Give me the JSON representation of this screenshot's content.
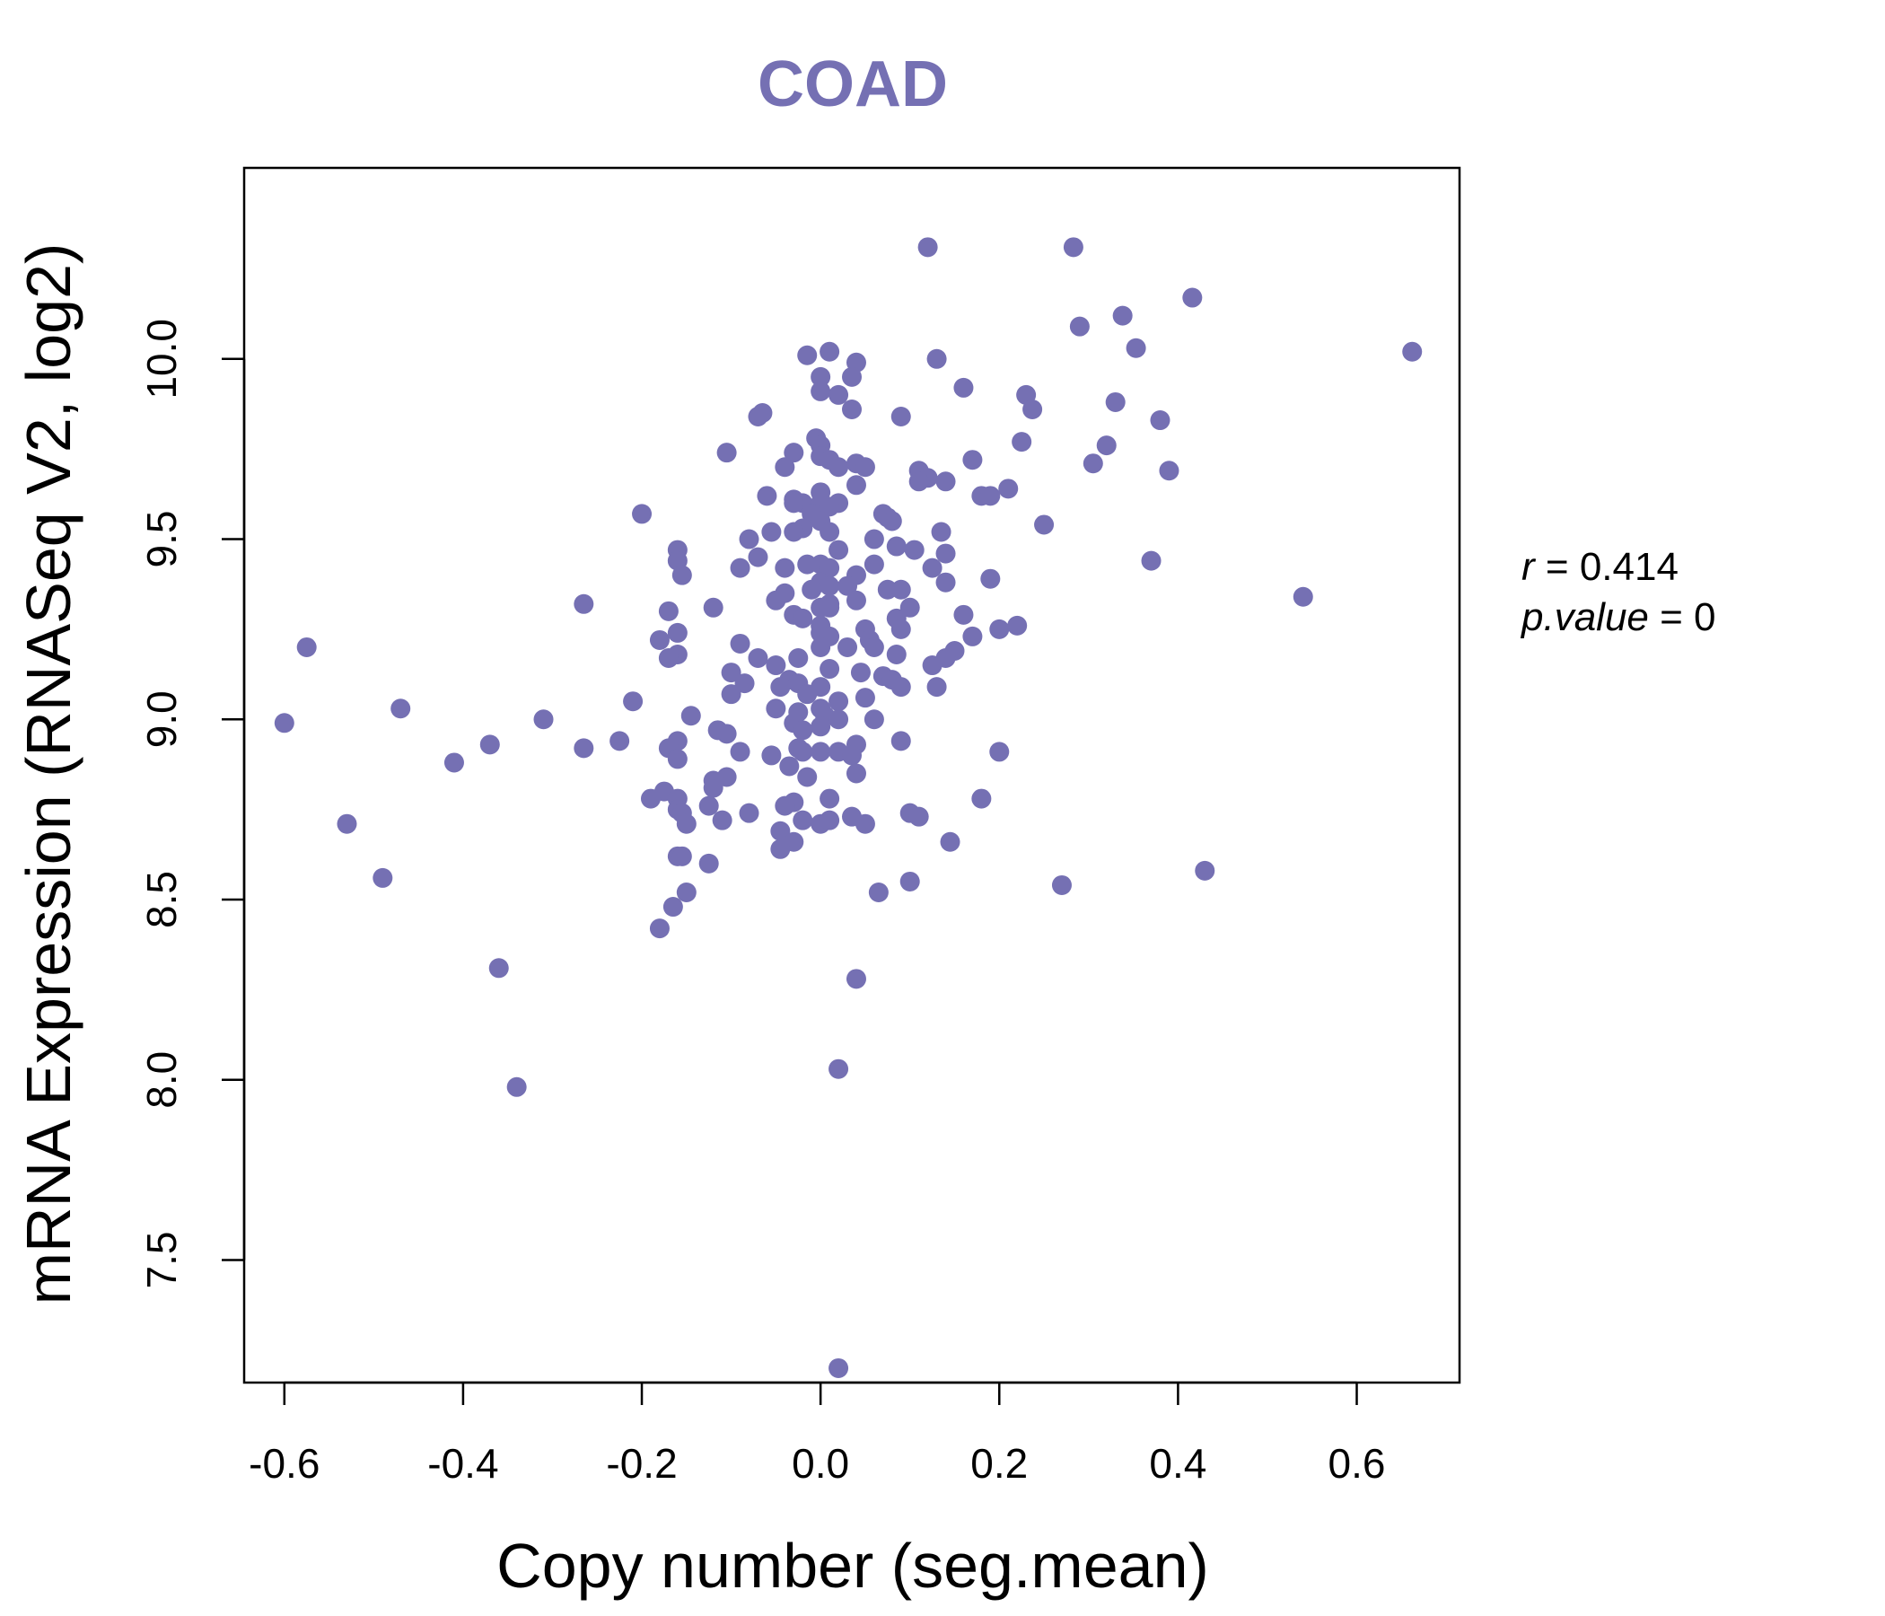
{
  "chart_data": {
    "type": "scatter",
    "title": "COAD",
    "xlabel": "Copy number (seg.mean)",
    "ylabel": "mRNA Expression (RNASeq V2, log2)",
    "xlim": [
      -0.645,
      0.715
    ],
    "ylim": [
      7.16,
      10.53
    ],
    "xticks": [
      -0.6,
      -0.4,
      -0.2,
      0.0,
      0.2,
      0.4,
      0.6
    ],
    "xtick_labels": [
      "-0.6",
      "-0.4",
      "-0.2",
      "0.0",
      "0.2",
      "0.4",
      "0.6"
    ],
    "yticks": [
      7.5,
      8.0,
      8.5,
      9.0,
      9.5,
      10.0
    ],
    "ytick_labels": [
      "7.5",
      "8.0",
      "8.5",
      "9.0",
      "9.5",
      "10.0"
    ],
    "grid": false,
    "point_color": "#7570b3",
    "stats": {
      "r_label": "r",
      "r_value": "0.414",
      "p_label": "p.value",
      "p_value": "0"
    },
    "points": [
      [
        0.12,
        10.31
      ],
      [
        0.283,
        10.31
      ],
      [
        0.416,
        10.17
      ],
      [
        0.29,
        10.09
      ],
      [
        0.338,
        10.12
      ],
      [
        0.353,
        10.03
      ],
      [
        0.662,
        10.02
      ],
      [
        -0.015,
        10.01
      ],
      [
        0.01,
        10.02
      ],
      [
        0.04,
        9.99
      ],
      [
        0.13,
        10.0
      ],
      [
        0.0,
        9.95
      ],
      [
        0.035,
        9.95
      ],
      [
        0.0,
        9.91
      ],
      [
        0.02,
        9.9
      ],
      [
        0.16,
        9.92
      ],
      [
        0.23,
        9.9
      ],
      [
        0.237,
        9.86
      ],
      [
        0.33,
        9.88
      ],
      [
        0.38,
        9.83
      ],
      [
        0.035,
        9.86
      ],
      [
        0.09,
        9.84
      ],
      [
        -0.07,
        9.84
      ],
      [
        -0.065,
        9.85
      ],
      [
        -0.005,
        9.78
      ],
      [
        0.0,
        9.76
      ],
      [
        0.32,
        9.76
      ],
      [
        0.225,
        9.77
      ],
      [
        -0.105,
        9.74
      ],
      [
        -0.03,
        9.74
      ],
      [
        0.0,
        9.73
      ],
      [
        0.17,
        9.72
      ],
      [
        0.01,
        9.72
      ],
      [
        0.02,
        9.7
      ],
      [
        0.04,
        9.71
      ],
      [
        -0.04,
        9.7
      ],
      [
        0.05,
        9.7
      ],
      [
        0.11,
        9.69
      ],
      [
        0.305,
        9.71
      ],
      [
        0.39,
        9.69
      ],
      [
        0.12,
        9.67
      ],
      [
        0.14,
        9.66
      ],
      [
        0.11,
        9.66
      ],
      [
        0.04,
        9.65
      ],
      [
        0.21,
        9.64
      ],
      [
        0.18,
        9.62
      ],
      [
        0.19,
        9.62
      ],
      [
        -0.06,
        9.62
      ],
      [
        0.0,
        9.63
      ],
      [
        -0.03,
        9.61
      ],
      [
        -0.02,
        9.6
      ],
      [
        0.0,
        9.6
      ],
      [
        0.02,
        9.6
      ],
      [
        0.01,
        9.59
      ],
      [
        -0.03,
        9.6
      ],
      [
        0.07,
        9.57
      ],
      [
        -0.2,
        9.57
      ],
      [
        -0.01,
        9.57
      ],
      [
        0.0,
        9.55
      ],
      [
        0.075,
        9.56
      ],
      [
        0.08,
        9.55
      ],
      [
        0.25,
        9.54
      ],
      [
        -0.02,
        9.53
      ],
      [
        0.01,
        9.52
      ],
      [
        -0.055,
        9.52
      ],
      [
        -0.03,
        9.52
      ],
      [
        -0.08,
        9.5
      ],
      [
        0.06,
        9.5
      ],
      [
        0.135,
        9.52
      ],
      [
        -0.16,
        9.47
      ],
      [
        0.085,
        9.48
      ],
      [
        0.02,
        9.47
      ],
      [
        0.105,
        9.47
      ],
      [
        0.14,
        9.46
      ],
      [
        -0.16,
        9.44
      ],
      [
        -0.07,
        9.45
      ],
      [
        0.37,
        9.44
      ],
      [
        0.0,
        9.43
      ],
      [
        -0.015,
        9.43
      ],
      [
        0.01,
        9.42
      ],
      [
        -0.04,
        9.42
      ],
      [
        -0.09,
        9.42
      ],
      [
        0.06,
        9.43
      ],
      [
        0.125,
        9.42
      ],
      [
        -0.155,
        9.4
      ],
      [
        0.04,
        9.4
      ],
      [
        0.19,
        9.39
      ],
      [
        0.14,
        9.38
      ],
      [
        0.0,
        9.38
      ],
      [
        0.01,
        9.37
      ],
      [
        0.03,
        9.37
      ],
      [
        -0.01,
        9.36
      ],
      [
        0.075,
        9.36
      ],
      [
        0.09,
        9.36
      ],
      [
        -0.04,
        9.35
      ],
      [
        -0.05,
        9.33
      ],
      [
        0.04,
        9.33
      ],
      [
        0.54,
        9.34
      ],
      [
        0.01,
        9.32
      ],
      [
        0.0,
        9.31
      ],
      [
        0.01,
        9.31
      ],
      [
        -0.12,
        9.31
      ],
      [
        -0.265,
        9.32
      ],
      [
        0.1,
        9.31
      ],
      [
        -0.17,
        9.3
      ],
      [
        0.16,
        9.29
      ],
      [
        -0.03,
        9.29
      ],
      [
        -0.02,
        9.28
      ],
      [
        0.085,
        9.28
      ],
      [
        0.09,
        9.25
      ],
      [
        0.22,
        9.26
      ],
      [
        0.2,
        9.25
      ],
      [
        0.0,
        9.26
      ],
      [
        0.05,
        9.25
      ],
      [
        -0.16,
        9.24
      ],
      [
        0.0,
        9.24
      ],
      [
        0.01,
        9.23
      ],
      [
        0.17,
        9.23
      ],
      [
        0.055,
        9.22
      ],
      [
        -0.18,
        9.22
      ],
      [
        -0.09,
        9.21
      ],
      [
        0.0,
        9.2
      ],
      [
        0.03,
        9.2
      ],
      [
        0.06,
        9.2
      ],
      [
        -0.575,
        9.2
      ],
      [
        0.15,
        9.19
      ],
      [
        0.14,
        9.17
      ],
      [
        -0.07,
        9.17
      ],
      [
        -0.16,
        9.18
      ],
      [
        -0.17,
        9.17
      ],
      [
        0.085,
        9.18
      ],
      [
        -0.025,
        9.17
      ],
      [
        -0.05,
        9.15
      ],
      [
        0.125,
        9.15
      ],
      [
        -0.1,
        9.13
      ],
      [
        0.01,
        9.14
      ],
      [
        0.045,
        9.13
      ],
      [
        0.07,
        9.12
      ],
      [
        -0.035,
        9.11
      ],
      [
        0.08,
        9.11
      ],
      [
        -0.085,
        9.1
      ],
      [
        -0.025,
        9.1
      ],
      [
        0.0,
        9.09
      ],
      [
        0.13,
        9.09
      ],
      [
        -0.045,
        9.09
      ],
      [
        0.09,
        9.09
      ],
      [
        -0.1,
        9.07
      ],
      [
        -0.015,
        9.07
      ],
      [
        0.02,
        9.05
      ],
      [
        0.05,
        9.06
      ],
      [
        -0.21,
        9.05
      ],
      [
        -0.47,
        9.03
      ],
      [
        0.0,
        9.03
      ],
      [
        -0.05,
        9.03
      ],
      [
        -0.025,
        9.02
      ],
      [
        0.005,
        9.01
      ],
      [
        -0.145,
        9.01
      ],
      [
        0.02,
        9.0
      ],
      [
        0.06,
        9.0
      ],
      [
        -0.31,
        9.0
      ],
      [
        -0.6,
        8.99
      ],
      [
        -0.03,
        8.99
      ],
      [
        0.0,
        8.98
      ],
      [
        -0.115,
        8.97
      ],
      [
        -0.02,
        8.97
      ],
      [
        -0.105,
        8.96
      ],
      [
        -0.16,
        8.94
      ],
      [
        -0.225,
        8.94
      ],
      [
        0.09,
        8.94
      ],
      [
        0.04,
        8.93
      ],
      [
        -0.37,
        8.93
      ],
      [
        -0.025,
        8.92
      ],
      [
        -0.17,
        8.92
      ],
      [
        -0.265,
        8.92
      ],
      [
        0.0,
        8.91
      ],
      [
        -0.055,
        8.9
      ],
      [
        0.02,
        8.91
      ],
      [
        0.035,
        8.9
      ],
      [
        -0.09,
        8.91
      ],
      [
        -0.02,
        8.91
      ],
      [
        0.2,
        8.91
      ],
      [
        -0.16,
        8.89
      ],
      [
        -0.035,
        8.87
      ],
      [
        -0.41,
        8.88
      ],
      [
        0.04,
        8.85
      ],
      [
        -0.015,
        8.84
      ],
      [
        -0.105,
        8.84
      ],
      [
        -0.12,
        8.83
      ],
      [
        -0.12,
        8.81
      ],
      [
        -0.175,
        8.8
      ],
      [
        -0.16,
        8.78
      ],
      [
        -0.19,
        8.78
      ],
      [
        0.01,
        8.78
      ],
      [
        0.18,
        8.78
      ],
      [
        -0.03,
        8.77
      ],
      [
        -0.16,
        8.75
      ],
      [
        -0.125,
        8.76
      ],
      [
        -0.04,
        8.76
      ],
      [
        -0.155,
        8.74
      ],
      [
        -0.08,
        8.74
      ],
      [
        0.1,
        8.74
      ],
      [
        0.11,
        8.73
      ],
      [
        0.035,
        8.73
      ],
      [
        -0.02,
        8.72
      ],
      [
        0.0,
        8.71
      ],
      [
        0.01,
        8.72
      ],
      [
        0.05,
        8.71
      ],
      [
        -0.15,
        8.71
      ],
      [
        -0.11,
        8.72
      ],
      [
        -0.53,
        8.71
      ],
      [
        -0.045,
        8.69
      ],
      [
        0.145,
        8.66
      ],
      [
        -0.03,
        8.66
      ],
      [
        -0.045,
        8.64
      ],
      [
        -0.16,
        8.62
      ],
      [
        -0.155,
        8.62
      ],
      [
        -0.125,
        8.6
      ],
      [
        0.43,
        8.58
      ],
      [
        -0.49,
        8.56
      ],
      [
        0.1,
        8.55
      ],
      [
        0.27,
        8.54
      ],
      [
        -0.15,
        8.52
      ],
      [
        0.065,
        8.52
      ],
      [
        -0.165,
        8.48
      ],
      [
        -0.18,
        8.42
      ],
      [
        -0.36,
        8.31
      ],
      [
        0.04,
        8.28
      ],
      [
        0.02,
        8.03
      ],
      [
        -0.34,
        7.98
      ],
      [
        0.02,
        7.2
      ]
    ]
  }
}
